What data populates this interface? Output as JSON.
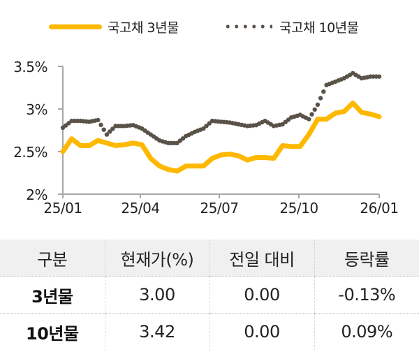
{
  "legend": {
    "series3y": "국고채 3년물",
    "series10y": "국고채 10년물"
  },
  "colors": {
    "series3y": "#FFB800",
    "series10y": "#5a5249",
    "axis": "#a6a6a6",
    "header_bg": "#f0f0f0"
  },
  "chart_data": {
    "type": "line",
    "title": "",
    "xlabel": "",
    "ylabel": "",
    "ylim": [
      2.0,
      3.5
    ],
    "yticks": [
      "3.5%",
      "3%",
      "2.5%",
      "2%"
    ],
    "xticks": [
      "25/01",
      "25/04",
      "25/07",
      "25/10",
      "26/01"
    ],
    "grid": false,
    "legend_position": "top",
    "x": [
      "25/01",
      "25/01",
      "25/02",
      "25/02",
      "25/02",
      "25/03",
      "25/03",
      "25/03",
      "25/04",
      "25/04",
      "25/04",
      "25/05",
      "25/05",
      "25/05",
      "25/06",
      "25/06",
      "25/06",
      "25/07",
      "25/07",
      "25/07",
      "25/08",
      "25/08",
      "25/08",
      "25/09",
      "25/09",
      "25/09",
      "25/10",
      "25/10",
      "25/10",
      "25/11",
      "25/11",
      "25/11",
      "25/12",
      "25/12",
      "25/12",
      "26/01",
      "26/01"
    ],
    "series": [
      {
        "name": "국고채 3년물",
        "style": "solid",
        "values": [
          2.5,
          2.65,
          2.57,
          2.57,
          2.63,
          2.6,
          2.57,
          2.58,
          2.6,
          2.58,
          2.42,
          2.33,
          2.29,
          2.27,
          2.33,
          2.33,
          2.33,
          2.42,
          2.46,
          2.47,
          2.45,
          2.4,
          2.43,
          2.43,
          2.42,
          2.57,
          2.56,
          2.56,
          2.7,
          2.88,
          2.88,
          2.95,
          2.97,
          3.07,
          2.96,
          2.94,
          2.91
        ]
      },
      {
        "name": "국고채 10년물",
        "style": "dotted",
        "values": [
          2.78,
          2.86,
          2.86,
          2.85,
          2.87,
          2.7,
          2.8,
          2.8,
          2.81,
          2.77,
          2.7,
          2.63,
          2.6,
          2.6,
          2.68,
          2.73,
          2.77,
          2.86,
          2.85,
          2.84,
          2.82,
          2.8,
          2.81,
          2.86,
          2.8,
          2.82,
          2.9,
          2.93,
          2.88,
          3.05,
          3.28,
          3.32,
          3.36,
          3.42,
          3.36,
          3.38,
          3.38
        ]
      }
    ]
  },
  "table": {
    "headers": [
      "구분",
      "현재가(%)",
      "전일 대비",
      "등락률"
    ],
    "rows": [
      {
        "name": "3년물",
        "price": "3.00",
        "change": "0.00",
        "rate": "-0.13%"
      },
      {
        "name": "10년물",
        "price": "3.42",
        "change": "0.00",
        "rate": "0.09%"
      }
    ]
  }
}
